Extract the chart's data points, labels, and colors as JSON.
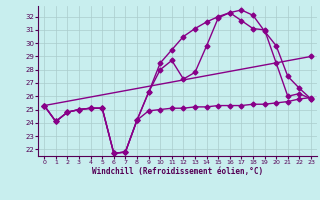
{
  "title": "",
  "xlabel": "Windchill (Refroidissement éolien,°C)",
  "background_color": "#c8eeee",
  "grid_color": "#aacccc",
  "line_color": "#880088",
  "xlim": [
    -0.5,
    23.5
  ],
  "ylim": [
    21.5,
    32.8
  ],
  "yticks": [
    22,
    23,
    24,
    25,
    26,
    27,
    28,
    29,
    30,
    31,
    32
  ],
  "xticks": [
    0,
    1,
    2,
    3,
    4,
    5,
    6,
    7,
    8,
    9,
    10,
    11,
    12,
    13,
    14,
    15,
    16,
    17,
    18,
    19,
    20,
    21,
    22,
    23
  ],
  "series": [
    {
      "x": [
        0,
        1,
        2,
        3,
        4,
        5,
        6,
        7,
        8,
        9,
        10,
        11,
        12,
        13,
        14,
        15,
        16,
        17,
        18,
        19,
        20,
        21,
        22,
        23
      ],
      "y": [
        25.3,
        24.1,
        24.8,
        25.0,
        25.1,
        25.1,
        21.7,
        21.8,
        24.2,
        26.3,
        28.0,
        28.7,
        27.3,
        27.8,
        29.8,
        31.9,
        32.3,
        32.5,
        32.1,
        30.9,
        29.8,
        27.5,
        26.6,
        25.8
      ],
      "marker": "D",
      "markersize": 2.5,
      "linewidth": 1.0
    },
    {
      "x": [
        0,
        1,
        2,
        3,
        4,
        5,
        6,
        7,
        8,
        9,
        10,
        11,
        12,
        13,
        14,
        15,
        16,
        17,
        18,
        19,
        20,
        21,
        22,
        23
      ],
      "y": [
        25.3,
        24.1,
        24.8,
        25.0,
        25.1,
        25.1,
        21.7,
        21.8,
        24.2,
        26.3,
        28.5,
        29.5,
        30.5,
        31.1,
        31.6,
        32.0,
        32.3,
        31.7,
        31.1,
        31.0,
        28.5,
        26.0,
        26.2,
        25.8
      ],
      "marker": "D",
      "markersize": 2.5,
      "linewidth": 1.0
    },
    {
      "x": [
        0,
        23
      ],
      "y": [
        25.3,
        29.0
      ],
      "marker": "D",
      "markersize": 2.5,
      "linewidth": 1.0
    },
    {
      "x": [
        0,
        1,
        2,
        3,
        4,
        5,
        6,
        7,
        8,
        9,
        10,
        11,
        12,
        13,
        14,
        15,
        16,
        17,
        18,
        19,
        20,
        21,
        22,
        23
      ],
      "y": [
        25.3,
        24.1,
        24.8,
        25.0,
        25.1,
        25.1,
        21.7,
        21.8,
        24.2,
        24.9,
        25.0,
        25.1,
        25.1,
        25.2,
        25.2,
        25.3,
        25.3,
        25.3,
        25.4,
        25.4,
        25.5,
        25.6,
        25.8,
        25.9
      ],
      "marker": "D",
      "markersize": 2.5,
      "linewidth": 1.0
    }
  ]
}
